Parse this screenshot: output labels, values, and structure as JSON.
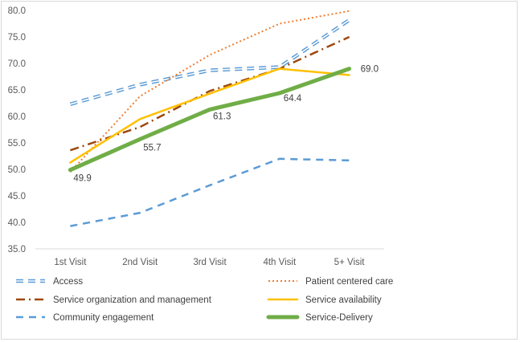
{
  "chart_data": {
    "type": "line",
    "categories": [
      "1st Visit",
      "2nd Visit",
      "3rd Visit",
      "4th Visit",
      "5+ Visit"
    ],
    "ylim": [
      35.0,
      80.0
    ],
    "yticks": [
      "35.0",
      "40.0",
      "45.0",
      "50.0",
      "55.0",
      "60.0",
      "65.0",
      "70.0",
      "75.0",
      "80.0"
    ],
    "grid": false,
    "legend_position": "bottom",
    "series": [
      {
        "name": "Access",
        "values": [
          62.3,
          66.0,
          68.7,
          69.3,
          78.2
        ],
        "color": "#5b9bd5",
        "style": "double-dash"
      },
      {
        "name": "Patient centered care",
        "values": [
          49.5,
          63.8,
          71.6,
          77.5,
          79.9
        ],
        "color": "#ed7d31",
        "style": "dotted"
      },
      {
        "name": "Service organization and management",
        "values": [
          53.6,
          58.0,
          64.8,
          69.0,
          75.0
        ],
        "color": "#9e480e",
        "style": "dash-dot"
      },
      {
        "name": "Service availability",
        "values": [
          51.3,
          59.5,
          64.3,
          69.0,
          67.8
        ],
        "color": "#ffc000",
        "style": "solid"
      },
      {
        "name": "Community engagement",
        "values": [
          39.3,
          41.8,
          47.0,
          52.0,
          51.7
        ],
        "color": "#5b9bd5",
        "style": "dashed"
      },
      {
        "name": "Service-Delivery",
        "values": [
          49.9,
          55.7,
          61.3,
          64.4,
          69.0
        ],
        "color": "#70ad47",
        "style": "thick"
      }
    ],
    "data_labels": {
      "series": "Service-Delivery",
      "labels": [
        "49.9",
        "55.7",
        "61.3",
        "64.4",
        "69.0"
      ]
    }
  }
}
